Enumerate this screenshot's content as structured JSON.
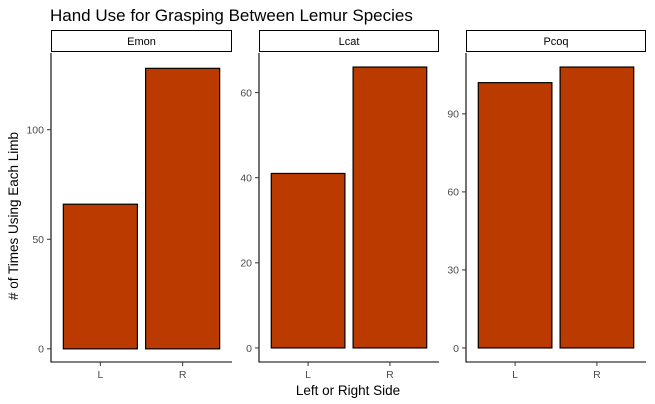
{
  "chart_data": {
    "type": "bar",
    "title": "Hand Use for Grasping Between Lemur Species",
    "xlabel": "Left or Right Side",
    "ylabel": "# of Times Using Each Limb",
    "bar_fill": "#bb3a00",
    "bar_stroke": "#000000",
    "grid": false,
    "legend": "none",
    "categories": [
      "L",
      "R"
    ],
    "panels": [
      {
        "name": "Emon",
        "values": [
          66,
          128
        ],
        "ylim": [
          -6,
          135
        ],
        "yticks": [
          0,
          50,
          100
        ]
      },
      {
        "name": "Lcat",
        "values": [
          41,
          66
        ],
        "ylim": [
          -3.3,
          69.3
        ],
        "yticks": [
          0,
          20,
          40,
          60
        ]
      },
      {
        "name": "Pcoq",
        "values": [
          102,
          108
        ],
        "ylim": [
          -5.4,
          113.4
        ],
        "yticks": [
          0,
          30,
          60,
          90
        ]
      }
    ]
  }
}
